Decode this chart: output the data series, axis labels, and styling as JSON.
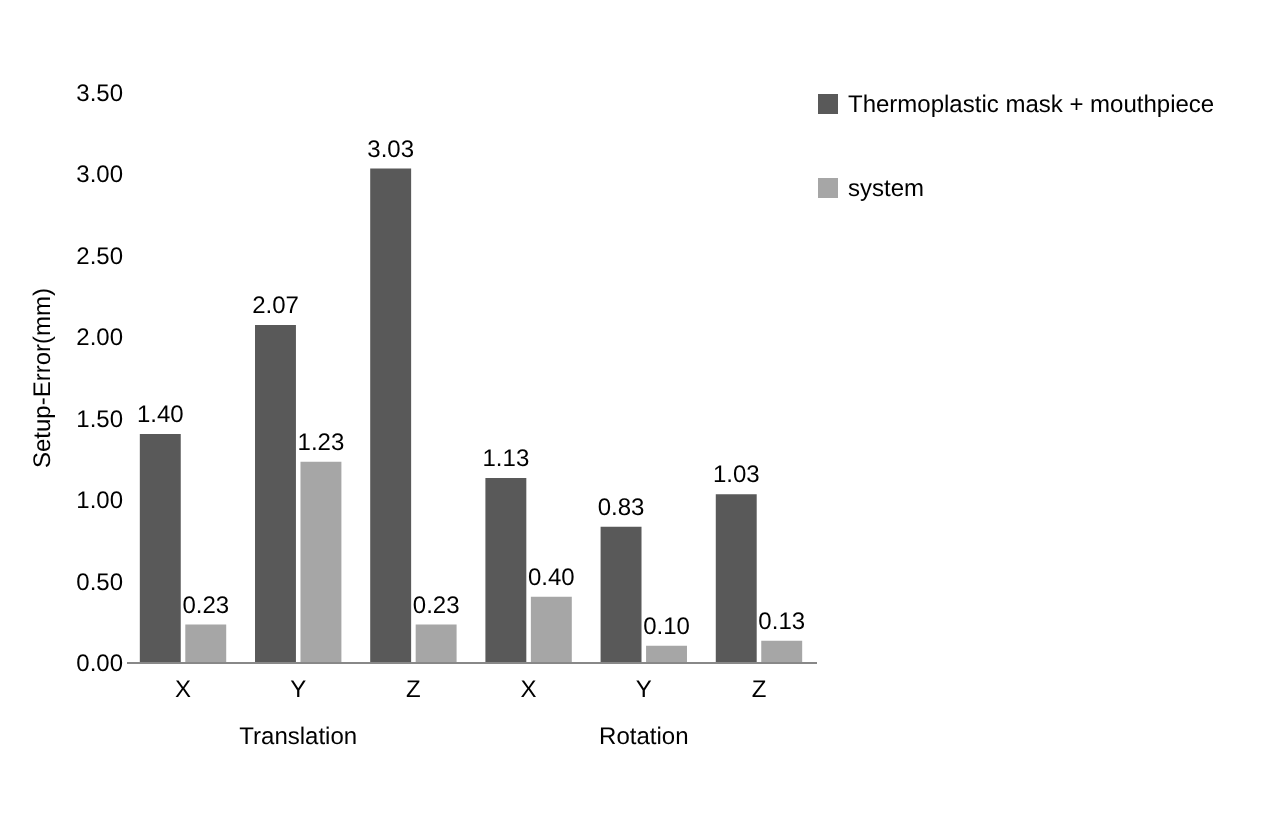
{
  "chart_data": {
    "type": "bar",
    "ylabel": "Setup-Error(mm)",
    "categories": [
      "X",
      "Y",
      "Z",
      "X",
      "Y",
      "Z"
    ],
    "series": [
      {
        "name": "Thermoplastic mask + mouthpiece",
        "color": "#595959",
        "values": [
          1.4,
          2.07,
          3.03,
          1.13,
          0.83,
          1.03
        ],
        "value_labels": [
          "1.40",
          "2.07",
          "3.03",
          "1.13",
          "0.83",
          "1.03"
        ]
      },
      {
        "name": "system",
        "color": "#a6a6a6",
        "values": [
          0.23,
          1.23,
          0.23,
          0.4,
          0.1,
          0.13
        ],
        "value_labels": [
          "0.23",
          "1.23",
          "0.23",
          "0.40",
          "0.10",
          "0.13"
        ]
      }
    ],
    "ylim": [
      0,
      3.5
    ],
    "yticks": [
      {
        "value": 0,
        "label": "0.00"
      },
      {
        "value": 0.5,
        "label": "0.50"
      },
      {
        "value": 1,
        "label": "1.00"
      },
      {
        "value": 1.5,
        "label": "1.50"
      },
      {
        "value": 2,
        "label": "2.00"
      },
      {
        "value": 2.5,
        "label": "2.50"
      },
      {
        "value": 3,
        "label": "3.00"
      },
      {
        "value": 3.5,
        "label": "3.50"
      }
    ],
    "annotations": [
      "Translation",
      "Rotation"
    ],
    "grid": false,
    "legend": "right"
  }
}
